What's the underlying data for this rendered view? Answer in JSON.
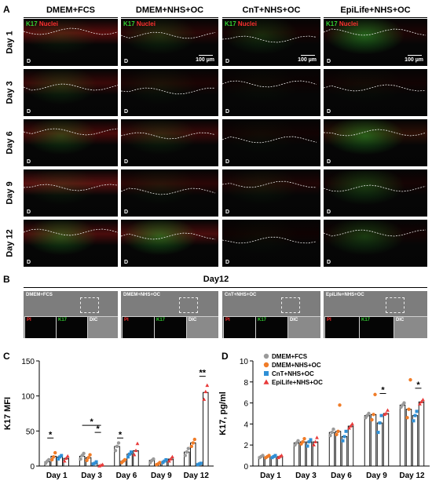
{
  "panelA": {
    "letter": "A",
    "columns": [
      "DMEM+FCS",
      "DMEM+NHS+OC",
      "CnT+NHS+OC",
      "EpiLife+NHS+OC"
    ],
    "rows": [
      "Day 1",
      "Day 3",
      "Day 6",
      "Day 9",
      "Day 12"
    ],
    "stain_k17": "K17",
    "stain_nuclei": "Nuclei",
    "dermis_label": "D",
    "scale_bar": "100 µm"
  },
  "panelB": {
    "letter": "B",
    "title": "Day12",
    "panels": [
      "DMEM+FCS",
      "DMEM+NHS+OC",
      "CnT+NHS+OC",
      "EpiLife+NHS+OC"
    ],
    "insets": [
      "PI",
      "K17",
      "DIC"
    ]
  },
  "chart_data": [
    {
      "letter": "C",
      "type": "bar",
      "ylabel": "K17 MFI",
      "ylim": [
        0,
        150
      ],
      "yticks": [
        "0",
        "50",
        "100",
        "150"
      ],
      "categories": [
        "Day 1",
        "Day 3",
        "Day 6",
        "Day 9",
        "Day 12"
      ],
      "series": [
        {
          "name": "DMEM+FCS",
          "color": "#9a9a9a",
          "marker": "circle",
          "values": [
            6,
            14,
            28,
            8,
            20
          ],
          "points": [
            [
              4,
              7,
              9
            ],
            [
              10,
              15,
              18
            ],
            [
              22,
              28,
              33
            ],
            [
              5,
              8,
              10
            ],
            [
              15,
              20,
              25
            ]
          ]
        },
        {
          "name": "DMEM+NHS+OC",
          "color": "#f07c28",
          "marker": "circle",
          "values": [
            14,
            12,
            7,
            3,
            33
          ],
          "points": [
            [
              9,
              13,
              19
            ],
            [
              8,
              12,
              16
            ],
            [
              5,
              7,
              9
            ],
            [
              2,
              3,
              5
            ],
            [
              28,
              33,
              38
            ]
          ]
        },
        {
          "name": "CnT+NHS+OC",
          "color": "#2e8fd6",
          "marker": "square",
          "values": [
            13,
            4,
            17,
            7,
            3
          ],
          "points": [
            [
              10,
              13,
              15
            ],
            [
              3,
              4,
              6
            ],
            [
              13,
              17,
              20
            ],
            [
              5,
              7,
              9
            ],
            [
              2,
              3,
              4
            ]
          ]
        },
        {
          "name": "EpiLife+NHS+OC",
          "color": "#e83a3a",
          "marker": "triangle",
          "values": [
            11,
            1,
            22,
            10,
            105
          ],
          "points": [
            [
              7,
              11,
              14
            ],
            [
              0,
              1,
              2
            ],
            [
              16,
              22,
              32
            ],
            [
              7,
              10,
              13
            ],
            [
              95,
              106,
              115
            ]
          ]
        }
      ],
      "annotations": [
        {
          "text": "*",
          "category": 0,
          "from": 0,
          "to": 1,
          "y": 40
        },
        {
          "text": "*",
          "category": 1,
          "from": 0,
          "to": 3,
          "y": 58
        },
        {
          "text": "*",
          "category": 1,
          "from": 2,
          "to": 3,
          "y": 48
        },
        {
          "text": "*",
          "category": 2,
          "from": 0,
          "to": 1,
          "y": 40
        },
        {
          "text": "**",
          "category": 4,
          "from": 2,
          "to": 3,
          "y": 128
        }
      ]
    },
    {
      "letter": "D",
      "type": "bar",
      "ylabel": "K17, pg/ml",
      "ylim": [
        0,
        10
      ],
      "yticks": [
        "0",
        "2",
        "4",
        "6",
        "8",
        "10"
      ],
      "categories": [
        "Day 1",
        "Day 3",
        "Day 6",
        "Day 9",
        "Day 12"
      ],
      "legend": [
        "DMEM+FCS",
        "DMEM+NHS+OC",
        "CnT+NHS+OC",
        "EpiLife+NHS+OC"
      ],
      "series": [
        {
          "name": "DMEM+FCS",
          "color": "#9a9a9a",
          "marker": "circle",
          "values": [
            0.9,
            2.2,
            3.2,
            4.8,
            5.8
          ],
          "points": [
            [
              0.8,
              0.9,
              1.0
            ],
            [
              2.0,
              2.2,
              2.4
            ],
            [
              2.9,
              3.2,
              3.5
            ],
            [
              4.6,
              4.8,
              5.0
            ],
            [
              5.6,
              5.8,
              6.0
            ]
          ]
        },
        {
          "name": "DMEM+NHS+OC",
          "color": "#f07c28",
          "marker": "circle",
          "values": [
            0.9,
            2.3,
            3.3,
            4.9,
            5.4
          ],
          "points": [
            [
              0.8,
              0.9,
              1.0
            ],
            [
              2.1,
              2.3,
              2.6
            ],
            [
              3.0,
              3.3,
              5.8
            ],
            [
              4.4,
              4.9,
              6.8
            ],
            [
              4.6,
              5.4,
              8.2
            ]
          ]
        },
        {
          "name": "CnT+NHS+OC",
          "color": "#2e8fd6",
          "marker": "square",
          "values": [
            0.9,
            2.3,
            2.8,
            4.1,
            4.8
          ],
          "points": [
            [
              0.8,
              0.9,
              1.0
            ],
            [
              1.9,
              2.3,
              2.5
            ],
            [
              2.4,
              2.8,
              3.3
            ],
            [
              3.2,
              4.1,
              4.8
            ],
            [
              4.3,
              4.8,
              5.2
            ]
          ]
        },
        {
          "name": "EpiLife+NHS+OC",
          "color": "#e83a3a",
          "marker": "triangle",
          "values": [
            0.9,
            2.3,
            3.8,
            5.0,
            6.1
          ],
          "points": [
            [
              0.8,
              0.9,
              1.0
            ],
            [
              2.0,
              2.3,
              2.7
            ],
            [
              3.6,
              3.8,
              4.0
            ],
            [
              4.9,
              5.0,
              5.3
            ],
            [
              5.9,
              6.1,
              6.3
            ]
          ]
        }
      ],
      "annotations": [
        {
          "text": "*",
          "category": 3,
          "from": 2,
          "to": 3,
          "y": 6.9
        },
        {
          "text": "*",
          "category": 4,
          "from": 2,
          "to": 3,
          "y": 7.4
        }
      ]
    }
  ]
}
